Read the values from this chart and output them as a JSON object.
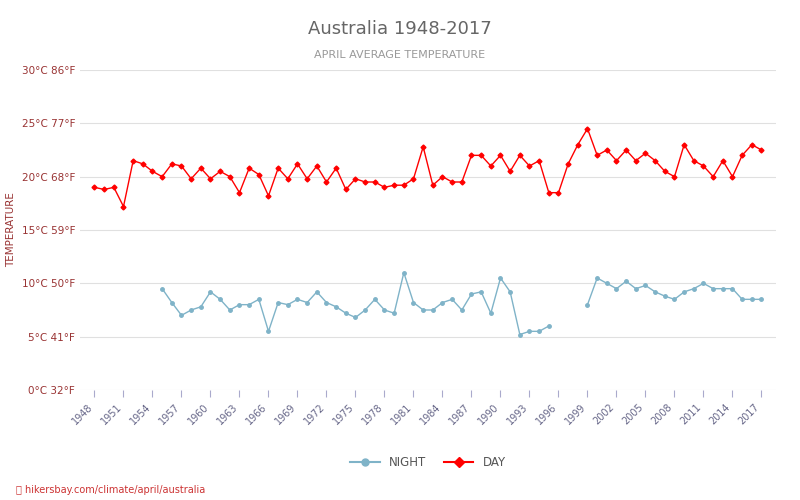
{
  "title": "Australia 1948-2017",
  "subtitle": "APRIL AVERAGE TEMPERATURE",
  "ylabel": "TEMPERATURE",
  "xlabel_url": "hikersbay.com/climate/april/australia",
  "years": [
    1948,
    1949,
    1950,
    1951,
    1952,
    1953,
    1954,
    1955,
    1956,
    1957,
    1958,
    1959,
    1960,
    1961,
    1962,
    1963,
    1964,
    1965,
    1966,
    1967,
    1968,
    1969,
    1970,
    1971,
    1972,
    1973,
    1974,
    1975,
    1976,
    1977,
    1978,
    1979,
    1980,
    1981,
    1982,
    1983,
    1984,
    1985,
    1986,
    1987,
    1988,
    1989,
    1990,
    1991,
    1992,
    1993,
    1994,
    1995,
    1996,
    1997,
    1998,
    1999,
    2000,
    2001,
    2002,
    2003,
    2004,
    2005,
    2006,
    2007,
    2008,
    2009,
    2010,
    2011,
    2012,
    2013,
    2014,
    2015,
    2016,
    2017
  ],
  "day_temps": [
    19.0,
    18.8,
    19.0,
    17.2,
    21.5,
    21.2,
    20.5,
    20.0,
    21.2,
    21.0,
    19.8,
    20.8,
    19.8,
    20.5,
    20.0,
    18.5,
    20.8,
    20.2,
    18.2,
    20.8,
    19.8,
    21.2,
    19.8,
    21.0,
    19.5,
    20.8,
    18.8,
    19.8,
    19.5,
    19.5,
    19.0,
    19.2,
    19.2,
    19.8,
    22.8,
    19.2,
    20.0,
    19.5,
    19.5,
    22.0,
    22.0,
    21.0,
    22.0,
    20.5,
    22.0,
    21.0,
    21.5,
    18.5,
    18.5,
    21.2,
    23.0,
    24.5,
    22.0,
    22.5,
    21.5,
    22.5,
    21.5,
    22.2,
    21.5,
    20.5,
    20.0,
    23.0,
    21.5,
    21.0,
    20.0,
    21.5,
    20.0,
    22.0,
    23.0,
    22.5
  ],
  "night_temps": [
    null,
    null,
    null,
    null,
    null,
    null,
    null,
    9.5,
    8.2,
    7.0,
    7.5,
    7.8,
    9.2,
    8.5,
    7.5,
    8.0,
    8.0,
    8.5,
    5.5,
    8.2,
    8.0,
    8.5,
    8.2,
    9.2,
    8.2,
    7.8,
    7.2,
    6.8,
    7.5,
    8.5,
    7.5,
    7.2,
    11.0,
    8.2,
    7.5,
    7.5,
    8.2,
    8.5,
    7.5,
    9.0,
    9.2,
    7.2,
    10.5,
    9.2,
    5.2,
    5.5,
    5.5,
    6.0,
    null,
    null,
    null,
    8.0,
    10.5,
    10.0,
    9.5,
    10.2,
    9.5,
    9.8,
    9.2,
    8.8,
    8.5,
    9.2,
    9.5,
    10.0,
    9.5,
    9.5,
    9.5,
    8.5,
    8.5,
    8.5
  ],
  "day_color": "#ff0000",
  "night_color": "#7fb3c8",
  "title_color": "#666666",
  "subtitle_color": "#999999",
  "axis_label_color": "#993333",
  "grid_color": "#e0e0e0",
  "url_color": "#cc3333",
  "background_color": "#ffffff",
  "ylim": [
    0,
    30
  ],
  "yticks_c": [
    0,
    5,
    10,
    15,
    20,
    25,
    30
  ],
  "yticks_f": [
    32,
    41,
    50,
    59,
    68,
    77,
    86
  ],
  "xtick_years": [
    1948,
    1951,
    1954,
    1957,
    1960,
    1963,
    1966,
    1969,
    1972,
    1975,
    1978,
    1981,
    1984,
    1987,
    1990,
    1993,
    1996,
    1999,
    2002,
    2005,
    2008,
    2011,
    2014,
    2017
  ],
  "legend_night": "NIGHT",
  "legend_day": "DAY"
}
